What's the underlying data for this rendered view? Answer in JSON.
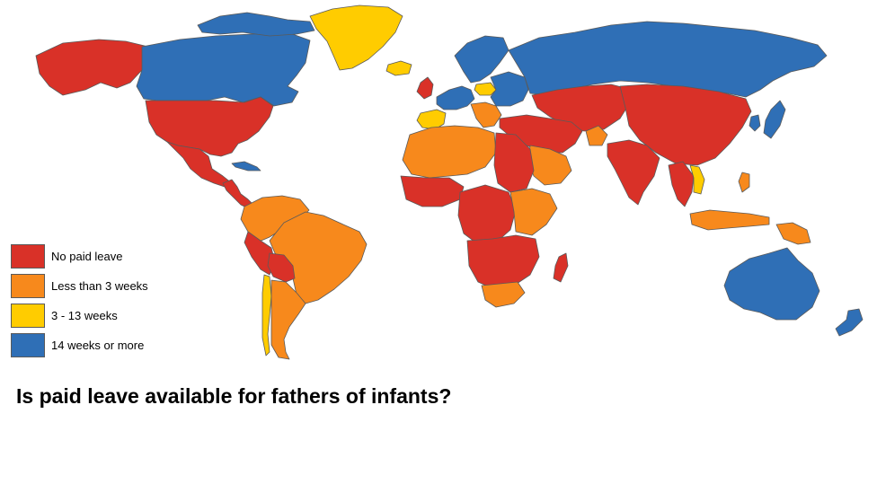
{
  "title": "Is paid leave available for fathers of infants?",
  "legend": [
    {
      "key": "none",
      "label": "No paid leave",
      "color": "#d93128"
    },
    {
      "key": "lt3",
      "label": "Less than 3 weeks",
      "color": "#f7891c"
    },
    {
      "key": "w3to13",
      "label": "3 - 13 weeks",
      "color": "#ffcc00"
    },
    {
      "key": "ge14",
      "label": "14 weeks or more",
      "color": "#2f6fb6"
    }
  ],
  "regions": [
    {
      "name": "Alaska",
      "category": "none"
    },
    {
      "name": "Canada",
      "category": "ge14"
    },
    {
      "name": "Canadian Arctic Islands",
      "category": "ge14"
    },
    {
      "name": "Greenland",
      "category": "w3to13"
    },
    {
      "name": "Iceland",
      "category": "w3to13"
    },
    {
      "name": "United States",
      "category": "none"
    },
    {
      "name": "Mexico",
      "category": "none"
    },
    {
      "name": "Central America",
      "category": "none"
    },
    {
      "name": "Cuba",
      "category": "ge14"
    },
    {
      "name": "South America (northwest)",
      "category": "lt3"
    },
    {
      "name": "Brazil",
      "category": "lt3"
    },
    {
      "name": "Peru",
      "category": "none"
    },
    {
      "name": "Bolivia",
      "category": "none"
    },
    {
      "name": "Chile",
      "category": "w3to13"
    },
    {
      "name": "Argentina",
      "category": "lt3"
    },
    {
      "name": "Scandinavia",
      "category": "ge14"
    },
    {
      "name": "United Kingdom",
      "category": "none"
    },
    {
      "name": "Western Europe",
      "category": "ge14"
    },
    {
      "name": "Spain and Portugal",
      "category": "w3to13"
    },
    {
      "name": "Poland",
      "category": "w3to13"
    },
    {
      "name": "Eastern Europe",
      "category": "ge14"
    },
    {
      "name": "Balkans",
      "category": "lt3"
    },
    {
      "name": "Russia",
      "category": "ge14"
    },
    {
      "name": "Kazakhstan and Central Asia",
      "category": "none"
    },
    {
      "name": "China and Mongolia",
      "category": "none"
    },
    {
      "name": "Japan",
      "category": "ge14"
    },
    {
      "name": "Korea",
      "category": "ge14"
    },
    {
      "name": "Turkey and Middle East",
      "category": "none"
    },
    {
      "name": "Saudi Arabia",
      "category": "lt3"
    },
    {
      "name": "Afghanistan",
      "category": "lt3"
    },
    {
      "name": "India",
      "category": "none"
    },
    {
      "name": "Southeast Asia",
      "category": "none"
    },
    {
      "name": "Vietnam and Laos",
      "category": "w3to13"
    },
    {
      "name": "Philippines",
      "category": "lt3"
    },
    {
      "name": "Indonesia",
      "category": "lt3"
    },
    {
      "name": "Papua New Guinea",
      "category": "lt3"
    },
    {
      "name": "North Africa",
      "category": "lt3"
    },
    {
      "name": "Egypt and Sudan",
      "category": "none"
    },
    {
      "name": "West Africa",
      "category": "none"
    },
    {
      "name": "Central Africa",
      "category": "none"
    },
    {
      "name": "East Africa",
      "category": "lt3"
    },
    {
      "name": "Southern Africa",
      "category": "none"
    },
    {
      "name": "South Africa",
      "category": "lt3"
    },
    {
      "name": "Madagascar",
      "category": "none"
    },
    {
      "name": "Australia",
      "category": "ge14"
    },
    {
      "name": "New Zealand",
      "category": "ge14"
    }
  ]
}
